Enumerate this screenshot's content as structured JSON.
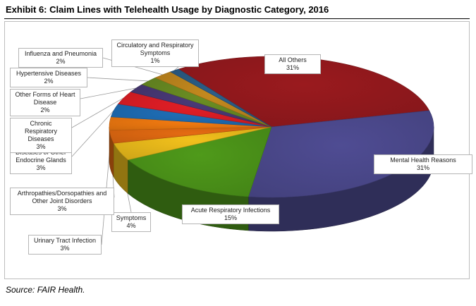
{
  "page": {
    "source": "Source: FAIR Health."
  },
  "chart_data": {
    "type": "pie",
    "style": "3d",
    "title": "Exhibit 6: Claim Lines with Telehealth Usage by Diagnostic Category, 2016",
    "slices": [
      {
        "label": "All Others",
        "value": 31,
        "display": "31%",
        "color": "#9a1a1e"
      },
      {
        "label": "Mental Health Reasons",
        "value": 31,
        "display": "31%",
        "color": "#4f4c93"
      },
      {
        "label": "Acute Respiratory Infections",
        "value": 15,
        "display": "15%",
        "color": "#4f9a1a"
      },
      {
        "label": "Symptoms",
        "value": 4,
        "display": "4%",
        "color": "#f2c11c"
      },
      {
        "label": "Urinary Tract Infection",
        "value": 3,
        "display": "3%",
        "color": "#e56b12"
      },
      {
        "label": "Arthropathies/Dorsopathies and Other Joint Disorders",
        "value": 3,
        "display": "3%",
        "color": "#f47b10"
      },
      {
        "label": "Diseases of Other Endocrine Glands",
        "value": 3,
        "display": "3%",
        "color": "#1f6fb8"
      },
      {
        "label": "Chronic Respiratory Diseases",
        "value": 3,
        "display": "3%",
        "color": "#e31e26"
      },
      {
        "label": "Other Forms of Heart Disease",
        "value": 2,
        "display": "2%",
        "color": "#4a3a78"
      },
      {
        "label": "Hypertensive Diseases",
        "value": 2,
        "display": "2%",
        "color": "#6b8e23"
      },
      {
        "label": "Influenza and Pneumonia",
        "value": 2,
        "display": "2%",
        "color": "#c58a1e"
      },
      {
        "label": "Circulatory and Respiratory Symptoms",
        "value": 1,
        "display": "1%",
        "color": "#2c5f8a"
      }
    ]
  }
}
